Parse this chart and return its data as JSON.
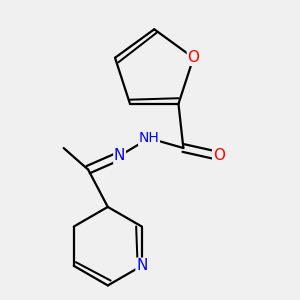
{
  "background_color": "#f0f0f0",
  "atom_colors": {
    "C": "#000000",
    "H": "#5f9ea0",
    "N": "#0000ff",
    "O": "#ff0000"
  },
  "bond_color": "#000000",
  "bond_width": 1.6,
  "figsize": [
    3.0,
    3.0
  ],
  "dpi": 100,
  "font_size": 11
}
